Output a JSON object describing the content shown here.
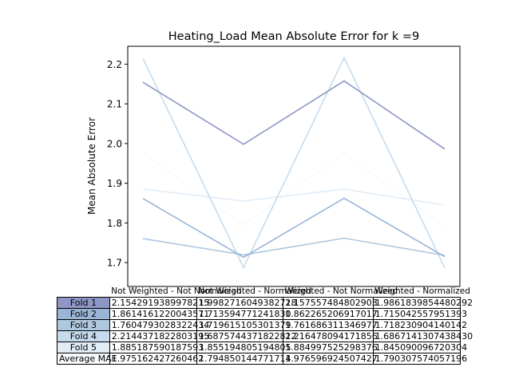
{
  "chart_data": {
    "type": "line",
    "title": "Heating_Load Mean Absolute Error for k =9",
    "xlabel": "",
    "ylabel": "Mean Absolute Error",
    "categories": [
      "Not Weighted - Not Normalized",
      "Not Weighted - Normalized",
      "Weighted - Not Normalized",
      "Weighted - Normalized"
    ],
    "ylim": [
      1.64,
      2.245
    ],
    "yticks": [
      "1.7",
      "1.8",
      "1.9",
      "2.0",
      "2.1",
      "2.2"
    ],
    "ytick_values": [
      1.7,
      1.8,
      1.9,
      2.0,
      2.1,
      2.2
    ],
    "grid": false,
    "series": [
      {
        "name": "Fold 1",
        "color": "#8e96c6",
        "values": [
          2.1542919389978215,
          1.9982716049382718,
          2.157557484802903,
          1.9861839854480292
        ]
      },
      {
        "name": "Fold 2",
        "color": "#9ab5d6",
        "values": [
          1.861416122004357,
          1.71359477124183,
          1.862265206917017,
          1.715042557951393
        ]
      },
      {
        "name": "Fold 3",
        "color": "#aec8df",
        "values": [
          1.7604793028322434,
          1.719615105301379,
          1.761686311346977,
          1.718230904140142
        ]
      },
      {
        "name": "Fold 4",
        "color": "#c6dbec",
        "values": [
          2.2144371822803195,
          1.6875744371822812,
          2.216478094171856,
          1.686714130743843
        ]
      },
      {
        "name": "Fold 5",
        "color": "#e1ecf6",
        "values": [
          1.885187590187593,
          1.855194805194805,
          1.884997525298376,
          1.845090096720304
        ]
      },
      {
        "name": "Average MAE",
        "color": "#f7fafd",
        "values": [
          1.975162427260462,
          1.794850144771714,
          1.976596924507427,
          1.790307574057196
        ]
      }
    ],
    "table": {
      "columns": [
        "Not Weighted - Not Normalized",
        "Not Weighted - Normalized",
        "Weighted - Not Normalized",
        "Weighted - Normalized"
      ],
      "rows": [
        {
          "label": "Fold 1",
          "color": "#8e96c6",
          "cells": [
            "2.1542919389978215",
            "1.9982716049382718",
            "2.157557484802903",
            "1.9861839854480292"
          ]
        },
        {
          "label": "Fold 2",
          "color": "#9ab5d6",
          "cells": [
            "1.8614161220043571",
            "1.713594771241830",
            "1.862265206917017",
            "1.715042557951393"
          ]
        },
        {
          "label": "Fold 3",
          "color": "#aec8df",
          "cells": [
            "1.7604793028322434",
            "1.719615105301379",
            "1.761686311346977",
            "1.718230904140142"
          ]
        },
        {
          "label": "Fold 4",
          "color": "#c6dbec",
          "cells": [
            "2.2144371822803195",
            "1.6875744371822812",
            "2.216478094171856",
            "1.6867141307438430"
          ]
        },
        {
          "label": "Fold 5",
          "color": "#e1ecf6",
          "cells": [
            "1.885187590187593",
            "1.855194805194805",
            "1.884997525298376",
            "1.845090096720304"
          ]
        },
        {
          "label": "Average MAE",
          "color": "#f7fafd",
          "cells": [
            "1.975162427260462",
            "1.794850144771714",
            "1.976596924507427",
            "1.790307574057196"
          ]
        }
      ]
    }
  }
}
